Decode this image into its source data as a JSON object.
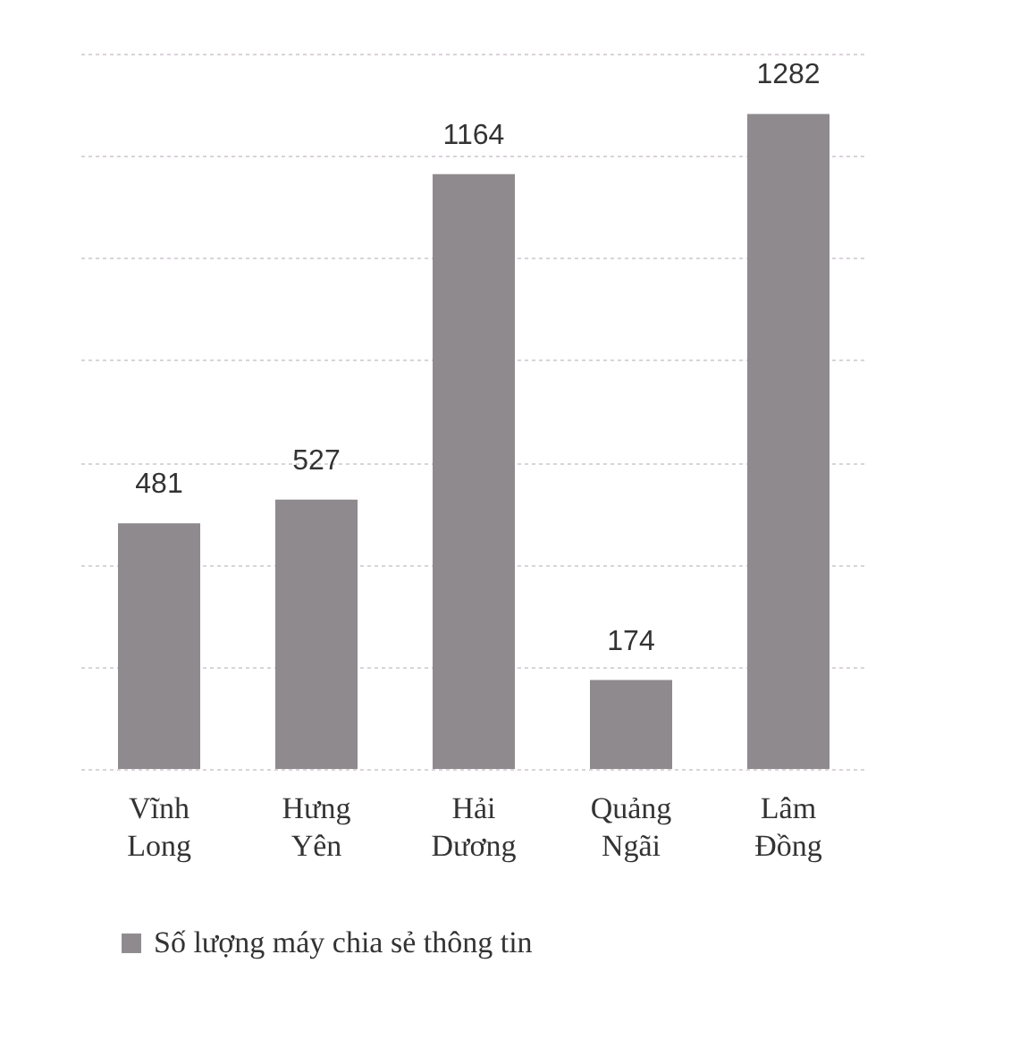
{
  "chart_data": {
    "type": "bar",
    "categories": [
      "Vĩnh Long",
      "Hưng Yên",
      "Hải Dương",
      "Quảng Ngãi",
      "Lâm Đồng"
    ],
    "series": [
      {
        "name": "Số lượng máy chia sẻ thông tin",
        "color": "#8e8a8e",
        "values": [
          481,
          527,
          1164,
          174,
          1282
        ]
      }
    ],
    "ylim": [
      0,
      1400
    ],
    "yticks": [
      {
        "value": 0,
        "label": null
      },
      {
        "value": 200,
        "label": null
      },
      {
        "value": 400,
        "label": null
      },
      {
        "value": 600,
        "label": null
      },
      {
        "value": 800,
        "label": null
      },
      {
        "value": 1000,
        "label": null
      },
      {
        "value": 1200,
        "label": null
      },
      {
        "value": 1400,
        "label": null
      }
    ],
    "tick_labels": "x",
    "grid": "y",
    "data_labels": true,
    "legend": "bottom"
  }
}
